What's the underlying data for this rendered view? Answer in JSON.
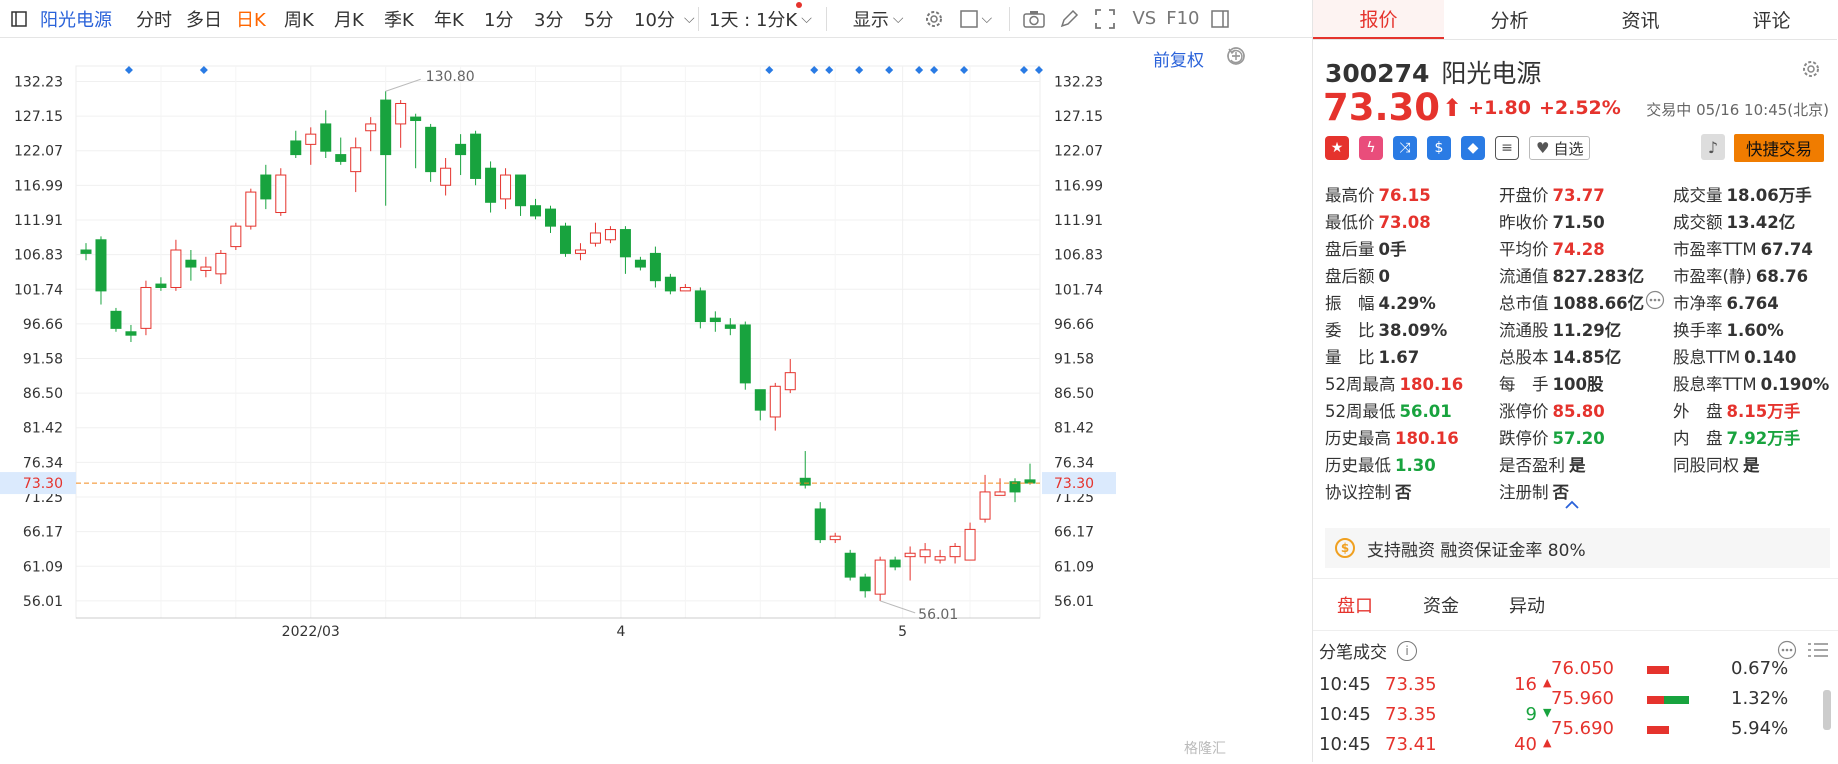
{
  "toolbar": {
    "stock_name": "阳光电源",
    "items": [
      "分时",
      "多日",
      "日K",
      "周K",
      "月K",
      "季K",
      "年K",
      "1分",
      "3分",
      "5分",
      "10分"
    ],
    "active": "日K",
    "timeframe": "1天 : 1分K",
    "display": "显示",
    "vs": "VS",
    "f10": "F10"
  },
  "chart_header": {
    "adjust": "前复权"
  },
  "price_axis": {
    "ticks": [
      "132.23",
      "127.15",
      "122.07",
      "116.99",
      "111.91",
      "106.83",
      "101.74",
      "96.66",
      "91.58",
      "86.50",
      "81.42",
      "76.34",
      "71.25",
      "66.17",
      "61.09",
      "56.01"
    ],
    "current": "73.30"
  },
  "annotations": {
    "high": "130.80",
    "low": "56.01"
  },
  "date_axis": {
    "labels": [
      "2022/03",
      "4",
      "5"
    ]
  },
  "chart_data": {
    "type": "candlestick",
    "ylim": [
      53.5,
      134.5
    ],
    "current_price": 73.3,
    "candles": [
      [
        107.5,
        107.0,
        108.5,
        106.0
      ],
      [
        109.0,
        101.5,
        109.5,
        99.5
      ],
      [
        98.5,
        96.0,
        99.0,
        95.5
      ],
      [
        95.5,
        95.0,
        96.5,
        94.0
      ],
      [
        96.0,
        102.0,
        103.0,
        95.0
      ],
      [
        102.5,
        102.0,
        103.5,
        101.5
      ],
      [
        102.0,
        107.5,
        109.0,
        101.5
      ],
      [
        106.0,
        105.0,
        107.5,
        103.0
      ],
      [
        104.5,
        105.0,
        106.5,
        103.5
      ],
      [
        104.0,
        107.0,
        107.5,
        102.5
      ],
      [
        108.0,
        111.0,
        111.5,
        107.5
      ],
      [
        111.0,
        116.0,
        116.5,
        110.5
      ],
      [
        118.5,
        115.0,
        120.0,
        113.5
      ],
      [
        113.0,
        118.5,
        119.5,
        112.5
      ],
      [
        123.5,
        121.5,
        125.0,
        121.0
      ],
      [
        123.0,
        124.5,
        125.5,
        120.0
      ],
      [
        126.0,
        122.0,
        128.0,
        121.0
      ],
      [
        121.5,
        120.5,
        124.0,
        120.0
      ],
      [
        119.0,
        122.5,
        124.0,
        116.0
      ],
      [
        125.0,
        126.0,
        127.0,
        122.0
      ],
      [
        129.5,
        121.5,
        130.8,
        114.0
      ],
      [
        126.0,
        129.0,
        129.5,
        122.5
      ],
      [
        127.0,
        126.5,
        127.5,
        119.5
      ],
      [
        125.5,
        119.0,
        126.0,
        117.5
      ],
      [
        117.0,
        119.5,
        121.0,
        115.5
      ],
      [
        123.0,
        121.5,
        124.5,
        118.5
      ],
      [
        124.5,
        118.0,
        125.0,
        117.0
      ],
      [
        119.5,
        114.5,
        120.5,
        113.0
      ],
      [
        115.0,
        118.5,
        119.5,
        113.5
      ],
      [
        118.5,
        114.0,
        118.5,
        112.5
      ],
      [
        114.0,
        112.5,
        115.0,
        112.0
      ],
      [
        113.5,
        111.0,
        114.0,
        110.0
      ],
      [
        111.0,
        107.0,
        111.5,
        106.5
      ],
      [
        107.0,
        107.5,
        108.5,
        106.0
      ],
      [
        108.5,
        110.0,
        111.5,
        108.0
      ],
      [
        109.0,
        110.5,
        111.0,
        108.5
      ],
      [
        110.5,
        106.5,
        111.0,
        104.0
      ],
      [
        106.0,
        105.0,
        106.5,
        104.5
      ],
      [
        107.0,
        103.0,
        108.0,
        102.0
      ],
      [
        103.5,
        101.5,
        104.0,
        101.0
      ],
      [
        101.5,
        102.0,
        102.5,
        101.5
      ],
      [
        101.5,
        97.0,
        102.0,
        96.0
      ],
      [
        97.5,
        97.0,
        98.5,
        95.5
      ],
      [
        96.5,
        96.0,
        97.5,
        95.0
      ],
      [
        96.5,
        88.0,
        97.0,
        87.0
      ],
      [
        87.0,
        84.0,
        87.0,
        82.5
      ],
      [
        83.0,
        87.5,
        88.0,
        81.0
      ],
      [
        87.0,
        89.5,
        91.5,
        86.5
      ],
      [
        74.0,
        73.0,
        78.0,
        72.5
      ],
      [
        69.5,
        65.0,
        70.5,
        64.5
      ],
      [
        65.0,
        65.5,
        66.0,
        64.5
      ],
      [
        63.0,
        59.5,
        63.5,
        59.0
      ],
      [
        59.5,
        57.5,
        60.0,
        56.5
      ],
      [
        57.0,
        62.0,
        62.5,
        56.0
      ],
      [
        62.0,
        61.0,
        62.5,
        60.5
      ],
      [
        62.5,
        63.0,
        64.0,
        59.0
      ],
      [
        62.5,
        63.5,
        64.5,
        61.5
      ],
      [
        62.0,
        62.5,
        63.5,
        61.5
      ],
      [
        62.5,
        64.0,
        64.5,
        61.5
      ],
      [
        62.0,
        66.5,
        67.5,
        62.0
      ],
      [
        68.0,
        72.0,
        74.5,
        67.5
      ],
      [
        71.5,
        72.0,
        74.0,
        71.5
      ],
      [
        73.5,
        72.0,
        74.0,
        70.5
      ],
      [
        73.77,
        73.3,
        76.15,
        73.08
      ]
    ]
  },
  "quote": {
    "code": "300274",
    "name": "阳光电源",
    "price": "73.30",
    "change": "+1.80",
    "change_pct": "+2.52%",
    "status": "交易中 05/16 10:45(北京)",
    "watch": "自选",
    "quick_trade": "快捷交易"
  },
  "tabs": [
    "报价",
    "分析",
    "资讯",
    "评论"
  ],
  "stats": [
    [
      [
        "最高价",
        "76.15",
        "red"
      ],
      [
        "开盘价",
        "73.77",
        "red"
      ],
      [
        "成交量",
        "18.06万手",
        ""
      ]
    ],
    [
      [
        "最低价",
        "73.08",
        "red"
      ],
      [
        "昨收价",
        "71.50",
        ""
      ],
      [
        "成交额",
        "13.42亿",
        ""
      ]
    ],
    [
      [
        "盘后量",
        "0手",
        ""
      ],
      [
        "平均价",
        "74.28",
        "red"
      ],
      [
        "市盈率TTM",
        "67.74",
        ""
      ]
    ],
    [
      [
        "盘后额",
        "0",
        ""
      ],
      [
        "流通值",
        "827.283亿",
        ""
      ],
      [
        "市盈率(静)",
        "68.76",
        ""
      ]
    ],
    [
      [
        "振　幅",
        "4.29%",
        ""
      ],
      [
        "总市值",
        "1088.66亿",
        ""
      ],
      [
        "市净率",
        "6.764",
        ""
      ]
    ],
    [
      [
        "委　比",
        "38.09%",
        ""
      ],
      [
        "流通股",
        "11.29亿",
        ""
      ],
      [
        "换手率",
        "1.60%",
        ""
      ]
    ],
    [
      [
        "量　比",
        "1.67",
        ""
      ],
      [
        "总股本",
        "14.85亿",
        ""
      ],
      [
        "股息TTM",
        "0.140",
        ""
      ]
    ],
    [
      [
        "52周最高",
        "180.16",
        "red"
      ],
      [
        "每　手",
        "100股",
        ""
      ],
      [
        "股息率TTM",
        "0.190%",
        ""
      ]
    ],
    [
      [
        "52周最低",
        "56.01",
        "green"
      ],
      [
        "涨停价",
        "85.80",
        "red"
      ],
      [
        "外　盘",
        "8.15万手",
        "red"
      ]
    ],
    [
      [
        "历史最高",
        "180.16",
        "red"
      ],
      [
        "跌停价",
        "57.20",
        "green"
      ],
      [
        "内　盘",
        "7.92万手",
        "green"
      ]
    ],
    [
      [
        "历史最低",
        "1.30",
        "green"
      ],
      [
        "是否盈利",
        "是",
        ""
      ],
      [
        "同股同权",
        "是",
        ""
      ]
    ],
    [
      [
        "协议控制",
        "否",
        ""
      ],
      [
        "注册制",
        "否",
        ""
      ],
      [
        "",
        "",
        ""
      ]
    ]
  ],
  "margin": {
    "text": "支持融资 融资保证金率 80%"
  },
  "subtabs": [
    "盘口",
    "资金",
    "异动"
  ],
  "trades": {
    "title": "分笔成交",
    "rows": [
      [
        "10:45",
        "73.35",
        "16",
        "up"
      ],
      [
        "10:45",
        "73.35",
        "9",
        "down"
      ],
      [
        "10:45",
        "73.41",
        "40",
        "up"
      ]
    ],
    "book": [
      [
        "76.050",
        "0.67%"
      ],
      [
        "75.960",
        "1.32%"
      ],
      [
        "75.690",
        "5.94%"
      ]
    ]
  },
  "watermark": "格隆汇"
}
